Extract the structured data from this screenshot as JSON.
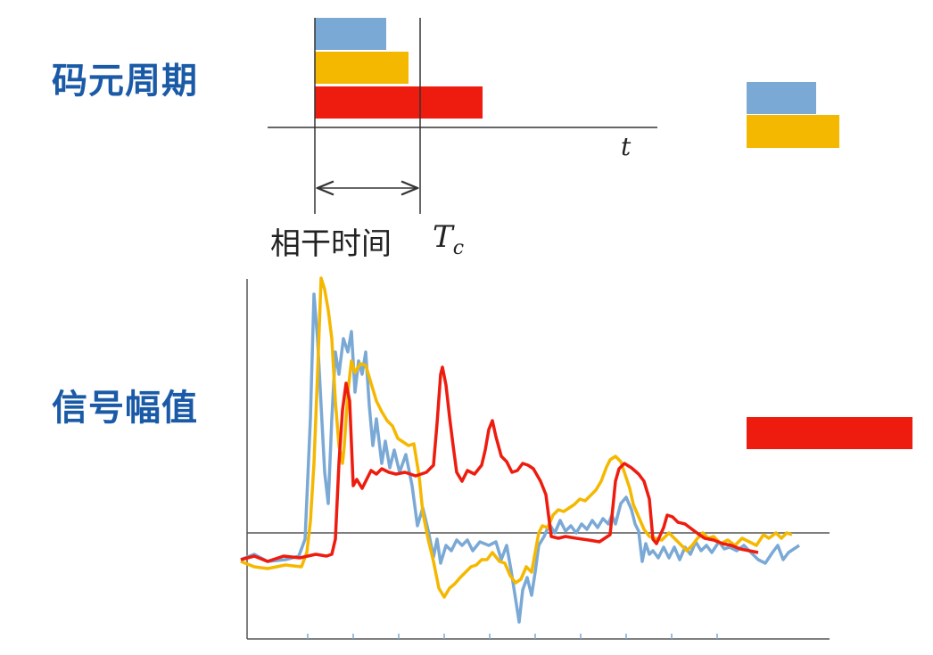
{
  "headings": {
    "symbol_period": "码元周期",
    "signal_amplitude": "信号幅值"
  },
  "timeline": {
    "axis_label": "t",
    "coherence_label": "相干时间",
    "coherence_symbol_main": "T",
    "coherence_symbol_sub": "c"
  },
  "colors": {
    "blue": "#7aa9d6",
    "yellow": "#f5b800",
    "red": "#ee1c0e",
    "axis": "#333333",
    "heading": "#1a5aa6"
  }
}
